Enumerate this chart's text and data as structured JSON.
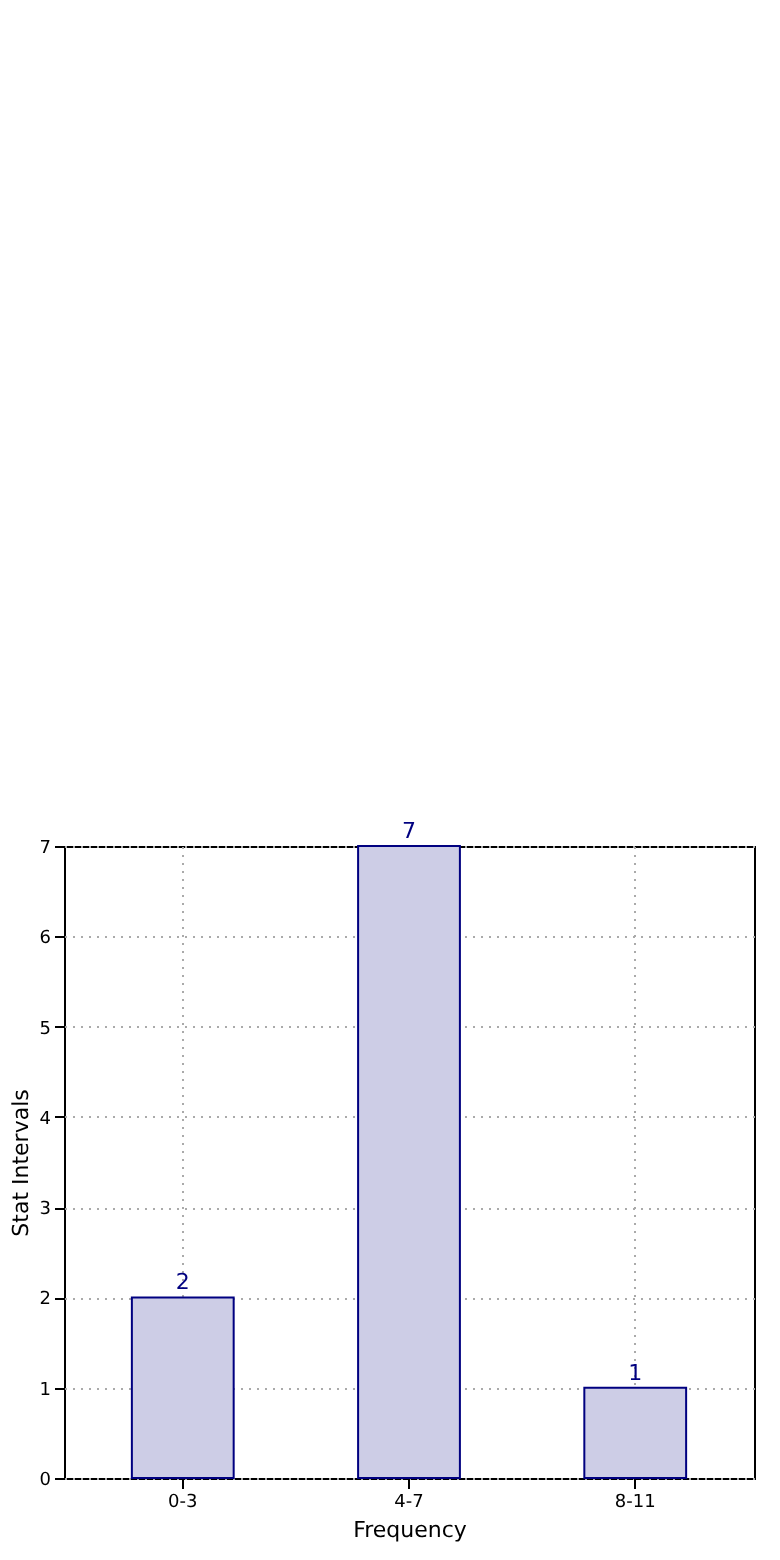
{
  "chart_data": {
    "type": "bar",
    "xlabel": "Frequency",
    "ylabel": "Stat Intervals",
    "categories": [
      "0-3",
      "4-7",
      "8-11"
    ],
    "values": [
      2,
      7,
      1
    ],
    "color": "#cdcde6",
    "ylim": [
      0,
      7
    ],
    "yticks": [
      0,
      1,
      2,
      3,
      4,
      5,
      6,
      7
    ],
    "grid": true,
    "data_labels": true
  }
}
